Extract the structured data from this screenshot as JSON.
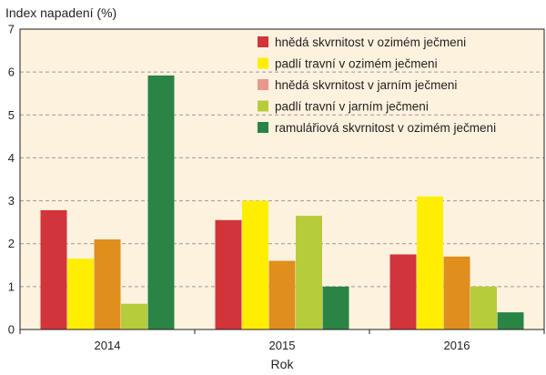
{
  "chart_data": {
    "type": "bar",
    "title": "Index napadení (%)",
    "xlabel": "Rok",
    "ylabel": "Index napadení (%)",
    "ylim": [
      0,
      7
    ],
    "yticks": [
      0,
      1,
      2,
      3,
      4,
      5,
      6,
      7
    ],
    "grid": true,
    "legend_position": "top-right",
    "categories": [
      "2014",
      "2015",
      "2016"
    ],
    "series": [
      {
        "name": "hnědá skvrnitost v ozimém ječmeni",
        "color": "#d1343a",
        "values": [
          2.78,
          2.55,
          1.75
        ]
      },
      {
        "name": "padlí travní v ozimém ječmeni",
        "color": "#ffee00",
        "values": [
          1.65,
          3.0,
          3.1
        ]
      },
      {
        "name": "hnědá skvrnitost v jarním ječmeni",
        "color": "#de8f1e",
        "values": [
          2.1,
          1.6,
          1.7
        ]
      },
      {
        "name": "padlí travní v jarním ječmeni",
        "color": "#b7cc3a",
        "values": [
          0.6,
          2.65,
          1.0
        ]
      },
      {
        "name": "ramulářiová skvrnitost v ozimém ječmeni",
        "color": "#2a8445",
        "values": [
          5.92,
          1.0,
          0.4
        ]
      }
    ],
    "legend_swatch_colors": [
      "#d1343a",
      "#ffee00",
      "#e8988d",
      "#b7cc3a",
      "#2a8445"
    ],
    "plot_background": "#fdf2de"
  }
}
